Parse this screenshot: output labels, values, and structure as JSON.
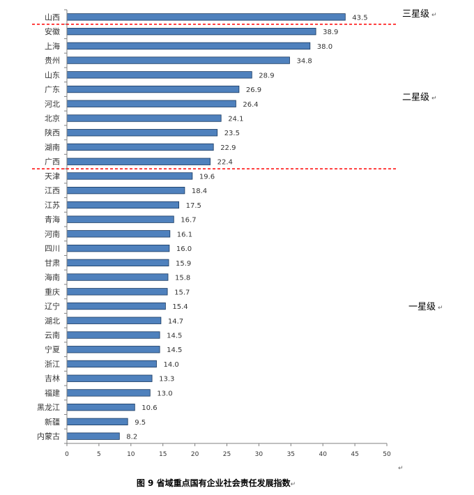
{
  "chart_data": {
    "type": "bar",
    "orientation": "horizontal",
    "title": "",
    "xlabel": "",
    "ylabel": "",
    "xlim": [
      0,
      50
    ],
    "x_ticks": [
      0,
      5,
      10,
      15,
      20,
      25,
      30,
      35,
      40,
      45,
      50
    ],
    "grid": false,
    "bar_color": "#4f81bd",
    "bar_edge_color": "#17375e",
    "categories": [
      "山西",
      "安徽",
      "上海",
      "贵州",
      "山东",
      "广东",
      "河北",
      "北京",
      "陕西",
      "湖南",
      "广西",
      "天津",
      "江西",
      "江苏",
      "青海",
      "河南",
      "四川",
      "甘肃",
      "海南",
      "重庆",
      "辽宁",
      "湖北",
      "云南",
      "宁夏",
      "浙江",
      "吉林",
      "福建",
      "黑龙江",
      "新疆",
      "内蒙古"
    ],
    "values": [
      43.5,
      38.9,
      38.0,
      34.8,
      28.9,
      26.9,
      26.4,
      24.1,
      23.5,
      22.9,
      22.4,
      19.6,
      18.4,
      17.5,
      16.7,
      16.1,
      16.0,
      15.9,
      15.8,
      15.7,
      15.4,
      14.7,
      14.5,
      14.5,
      14.0,
      13.3,
      13.0,
      10.6,
      9.5,
      8.2
    ],
    "value_labels": [
      "43.5",
      "38.9",
      "38.0",
      "34.8",
      "28.9",
      "26.9",
      "26.4",
      "24.1",
      "23.5",
      "22.9",
      "22.4",
      "19.6",
      "18.4",
      "17.5",
      "16.7",
      "16.1",
      "16.0",
      "15.9",
      "15.8",
      "15.7",
      "15.4",
      "14.7",
      "14.5",
      "14.5",
      "14.0",
      "13.3",
      "13.0",
      "10.6",
      "9.5",
      "8.2"
    ],
    "tiers": [
      {
        "label": "三星级",
        "from_index": 0,
        "to_index": 0
      },
      {
        "label": "二星级",
        "from_index": 1,
        "to_index": 10
      },
      {
        "label": "一星级",
        "from_index": 11,
        "to_index": 29
      }
    ],
    "divider_color": "#ff0000",
    "divider_after_indices": [
      0,
      10
    ],
    "return_mark": "↵"
  },
  "caption": "图 9  省域重点国有企业社会责任发展指数",
  "caption_mark": "↵"
}
